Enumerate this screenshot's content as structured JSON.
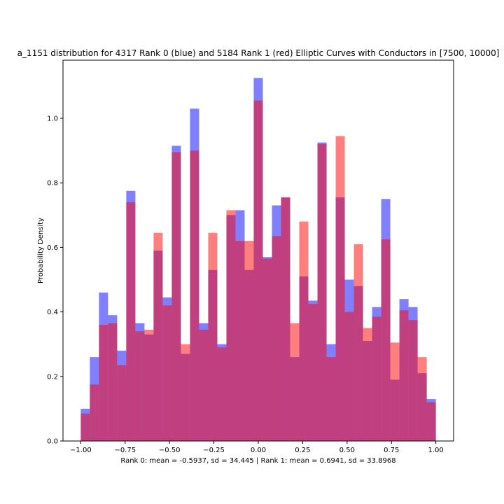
{
  "chart_data": {
    "type": "bar",
    "subtype": "overlaid-histogram",
    "title": "a_1151 distribution for 4317 Rank 0 (blue) and 5184 Rank 1 (red) Elliptic Curves with Conductors in [7500, 10000]",
    "xlabel": "Rank 0: mean = -0.5937, sd = 34.445 | Rank 1: mean = 0.6941, sd = 33.8968",
    "ylabel": "Probability Density",
    "xlim": [
      -1.1,
      1.1
    ],
    "ylim": [
      0,
      1.18
    ],
    "xticks": [
      -1.0,
      -0.75,
      -0.5,
      -0.25,
      0.0,
      0.25,
      0.5,
      0.75,
      1.0
    ],
    "xtick_labels": [
      "−1.00",
      "−0.75",
      "−0.50",
      "−0.25",
      "0.00",
      "0.25",
      "0.50",
      "0.75",
      "1.00"
    ],
    "yticks": [
      0.0,
      0.2,
      0.4,
      0.6,
      0.8,
      1.0
    ],
    "ytick_labels": [
      "0.0",
      "0.2",
      "0.4",
      "0.6",
      "0.8",
      "1.0"
    ],
    "bin_edges_start": -1.0,
    "bin_width": 0.05128,
    "bins": 39,
    "series": [
      {
        "name": "Rank 0",
        "color": "#0000ff",
        "alpha": 0.5,
        "values": [
          0.1,
          0.26,
          0.46,
          0.39,
          0.28,
          0.775,
          0.365,
          0.33,
          0.59,
          0.445,
          0.915,
          0.27,
          1.03,
          0.365,
          0.53,
          0.3,
          0.7,
          0.715,
          0.53,
          1.125,
          0.57,
          0.73,
          0.755,
          0.26,
          0.51,
          0.435,
          0.925,
          0.3,
          0.755,
          0.5,
          0.48,
          0.31,
          0.415,
          0.75,
          0.19,
          0.44,
          0.415,
          0.21,
          0.13
        ]
      },
      {
        "name": "Rank 1",
        "color": "#ff0000",
        "alpha": 0.5,
        "values": [
          0.085,
          0.175,
          0.36,
          0.365,
          0.235,
          0.74,
          0.34,
          0.345,
          0.645,
          0.42,
          0.895,
          0.3,
          0.9,
          0.345,
          0.645,
          0.29,
          0.715,
          0.62,
          0.62,
          1.055,
          0.565,
          0.635,
          0.755,
          0.365,
          0.68,
          0.425,
          0.92,
          0.26,
          0.945,
          0.4,
          0.61,
          0.35,
          0.385,
          0.625,
          0.305,
          0.405,
          0.375,
          0.26,
          0.12
        ]
      }
    ]
  }
}
